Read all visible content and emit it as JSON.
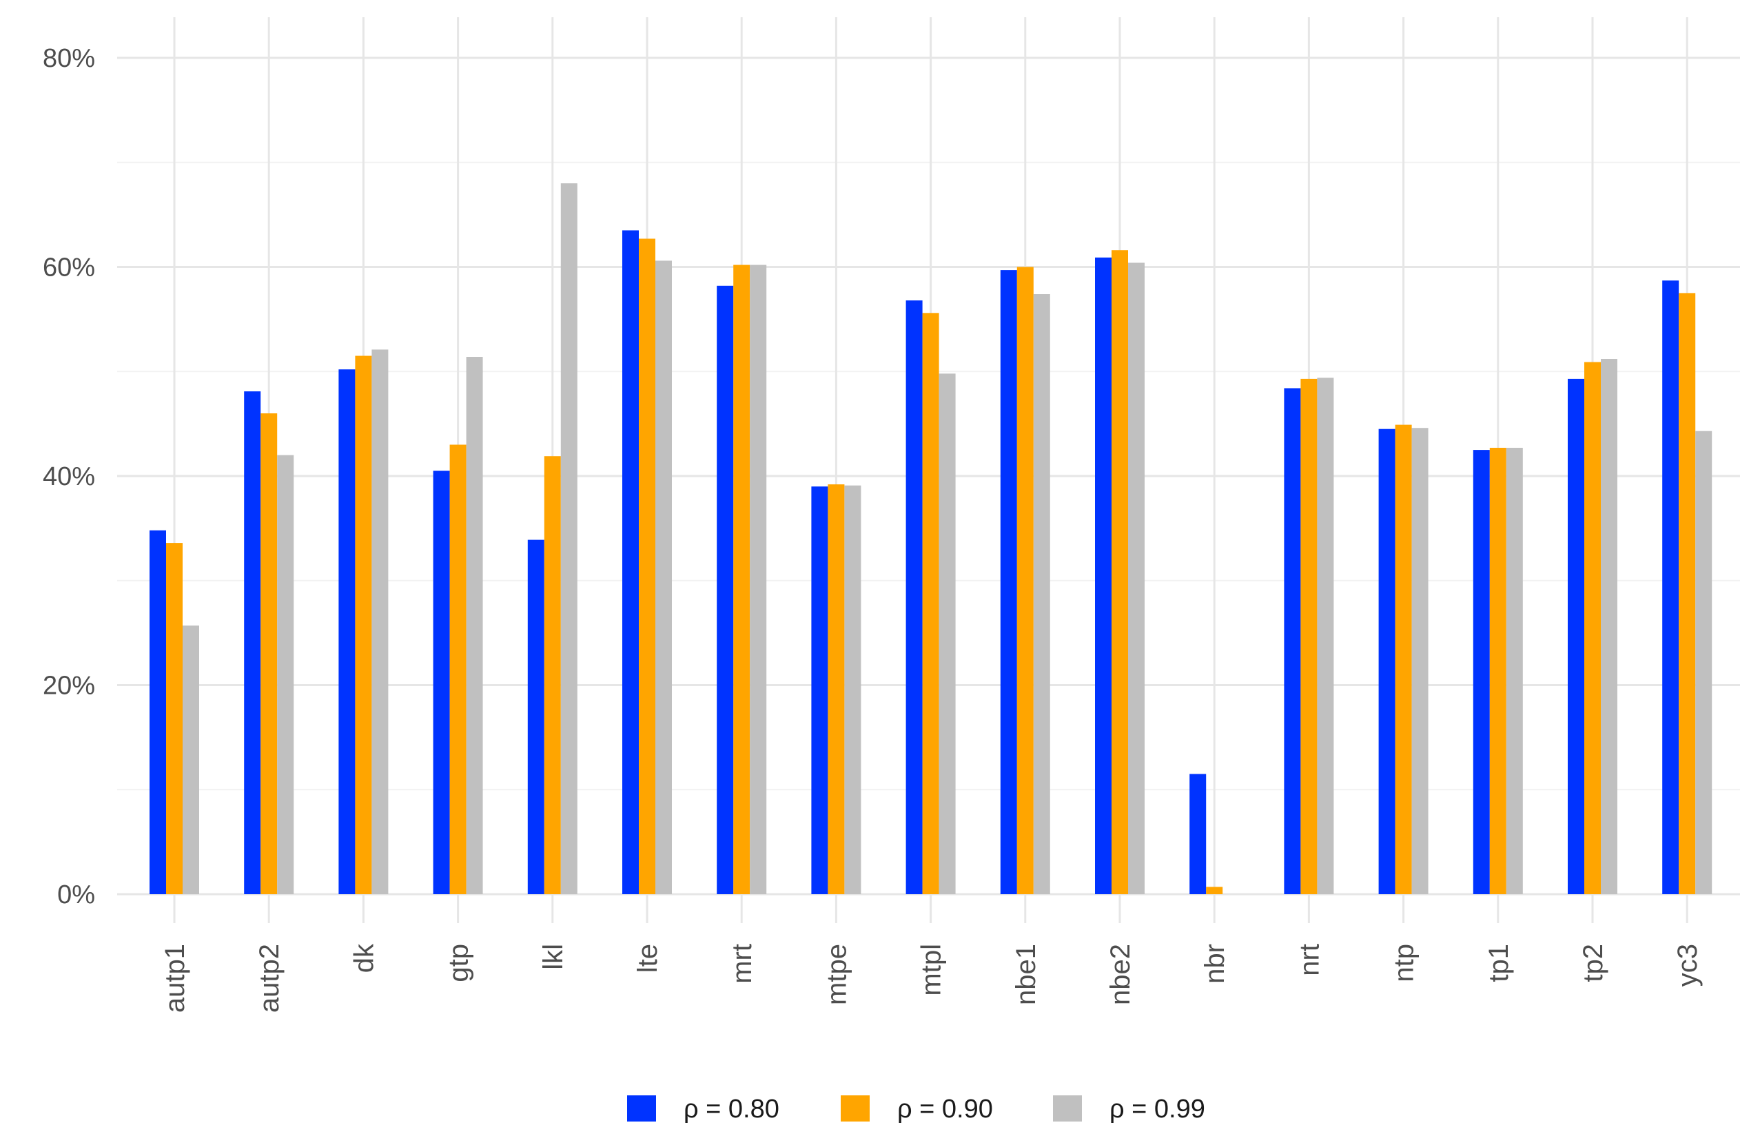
{
  "chart_data": {
    "type": "bar",
    "categories": [
      "autp1",
      "autp2",
      "dk",
      "gtp",
      "lkl",
      "lte",
      "mrt",
      "mtpe",
      "mtpl",
      "nbe1",
      "nbe2",
      "nbr",
      "nrt",
      "ntp",
      "tp1",
      "tp2",
      "yc3"
    ],
    "series": [
      {
        "name": "ρ = 0.80",
        "color": "#0033ff",
        "values": [
          34.8,
          48.1,
          50.2,
          40.5,
          33.9,
          63.5,
          58.2,
          39.0,
          56.8,
          59.7,
          60.9,
          11.5,
          48.4,
          44.5,
          42.5,
          49.3,
          58.7
        ]
      },
      {
        "name": "ρ = 0.90",
        "color": "#ffa500",
        "values": [
          33.6,
          46.0,
          51.5,
          43.0,
          41.9,
          62.7,
          60.2,
          39.2,
          55.6,
          60.0,
          61.6,
          0.7,
          49.3,
          44.9,
          42.7,
          50.9,
          57.5
        ]
      },
      {
        "name": "ρ = 0.99",
        "color": "#c0c0c0",
        "values": [
          25.7,
          42.0,
          52.1,
          51.4,
          68.0,
          60.6,
          60.2,
          39.1,
          49.8,
          57.4,
          60.4,
          0.0,
          49.4,
          44.6,
          42.7,
          51.2,
          44.3
        ]
      }
    ],
    "yticks": [
      "0%",
      "20%",
      "40%",
      "60%",
      "80%"
    ],
    "ylim": [
      0,
      80
    ],
    "grid": true,
    "legend_position": "bottom"
  }
}
